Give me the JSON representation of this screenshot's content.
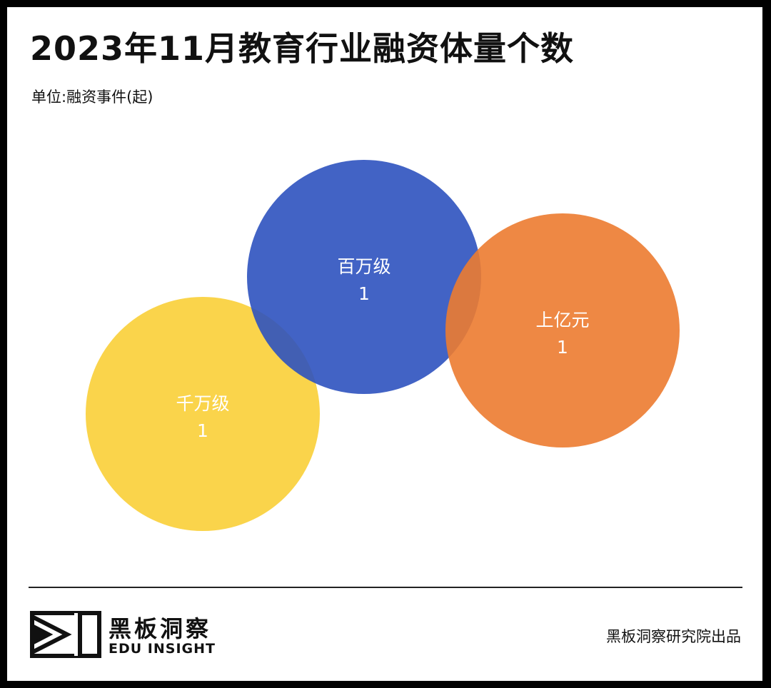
{
  "header": {
    "title": "2023年11月教育行业融资体量个数",
    "unit": "单位:融资事件(起)"
  },
  "chart_data": {
    "type": "bubble",
    "title": "2023年11月教育行业融资体量个数",
    "subtitle": "单位:融资事件(起)",
    "categories": [
      "千万级",
      "百万级",
      "上亿元"
    ],
    "values": [
      1,
      1,
      1
    ],
    "colors": [
      "#F9CF37",
      "#2E52BF",
      "#EC7B30"
    ]
  },
  "footer": {
    "logo_cn": "黑板洞察",
    "logo_en": "EDU INSIGHT",
    "credit": "黑板洞察研究院出品"
  }
}
